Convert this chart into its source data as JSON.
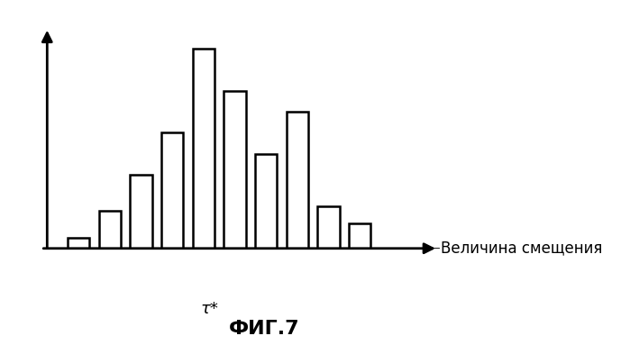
{
  "bar_positions": [
    1,
    2,
    3,
    4,
    5,
    6,
    7,
    8,
    9,
    10,
    11
  ],
  "bar_heights": [
    0.5,
    1.8,
    3.5,
    5.5,
    9.5,
    7.5,
    4.5,
    6.5,
    2.0,
    1.2,
    0
  ],
  "bar_width": 0.7,
  "bar_color": "white",
  "bar_edgecolor": "black",
  "bar_linewidth": 1.8,
  "xlabel": "Величина смещения",
  "figure_label": "ФИГ.7",
  "annotation_text": "τ*",
  "annotation_bar_index": 4,
  "background_color": "white",
  "ylim": [
    0,
    11
  ],
  "xlim": [
    -0.5,
    13
  ]
}
